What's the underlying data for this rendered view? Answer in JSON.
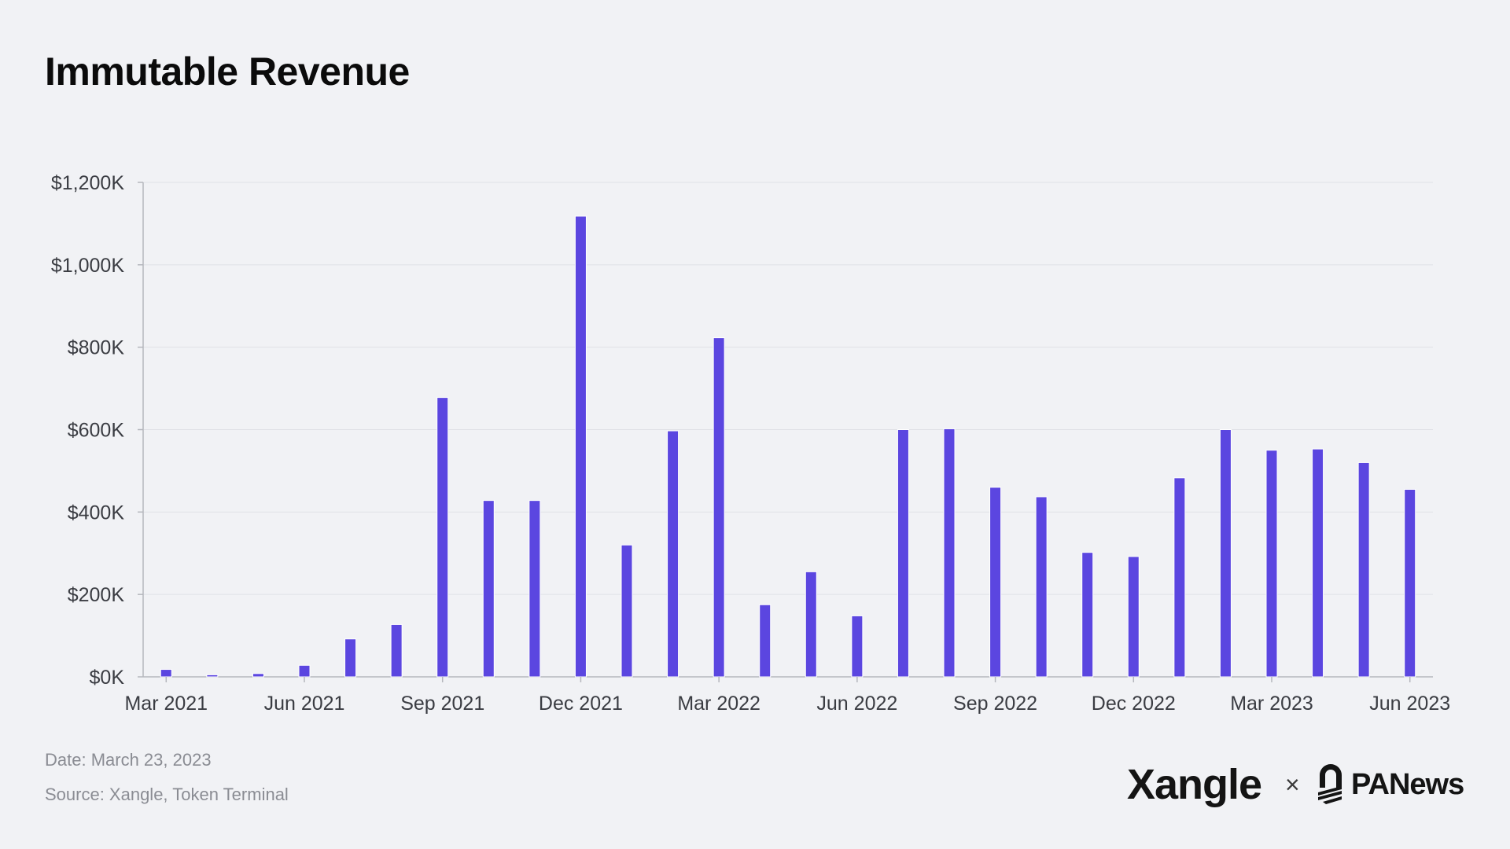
{
  "chart_data": {
    "type": "bar",
    "title": "Immutable Revenue",
    "xlabel": "",
    "ylabel": "",
    "ylim": [
      0,
      1200
    ],
    "y_unit_note": "thousands of USD",
    "y_ticks": [
      0,
      200,
      400,
      600,
      800,
      1000,
      1200
    ],
    "y_tick_labels": [
      "$0K",
      "$200K",
      "$400K",
      "$600K",
      "$800K",
      "$1,000K",
      "$1,200K"
    ],
    "categories": [
      "Mar 2021",
      "Apr 2021",
      "May 2021",
      "Jun 2021",
      "Jul 2021",
      "Aug 2021",
      "Sep 2021",
      "Oct 2021",
      "Nov 2021",
      "Dec 2021",
      "Jan 2022",
      "Feb 2022",
      "Mar 2022",
      "Apr 2022",
      "May 2022",
      "Jun 2022",
      "Jul 2022",
      "Aug 2022",
      "Sep 2022",
      "Oct 2022",
      "Nov 2022",
      "Dec 2022",
      "Jan 2023",
      "Feb 2023",
      "Mar 2023",
      "Apr 2023",
      "May 2023",
      "Jun 2023"
    ],
    "values": [
      18,
      5,
      8,
      28,
      92,
      127,
      678,
      428,
      428,
      1118,
      320,
      597,
      823,
      175,
      255,
      148,
      600,
      602,
      460,
      437,
      302,
      292,
      483,
      600,
      550,
      553,
      520,
      455
    ],
    "x_tick_labels": [
      "Mar 2021",
      "Jun 2021",
      "Sep 2021",
      "Dec 2021",
      "Mar 2022",
      "Jun 2022",
      "Sep 2022",
      "Dec 2022",
      "Mar 2023",
      "Jun 2023"
    ],
    "x_tick_step": 3,
    "grid": true,
    "bar_color": "#5b46e0"
  },
  "footer": {
    "date": "Date: March 23, 2023",
    "source": "Source: Xangle, Token Terminal"
  },
  "branding": {
    "xangle": "Xangle",
    "separator": "×",
    "panews": "PANews",
    "panews_icon": "panews-logo-icon"
  }
}
